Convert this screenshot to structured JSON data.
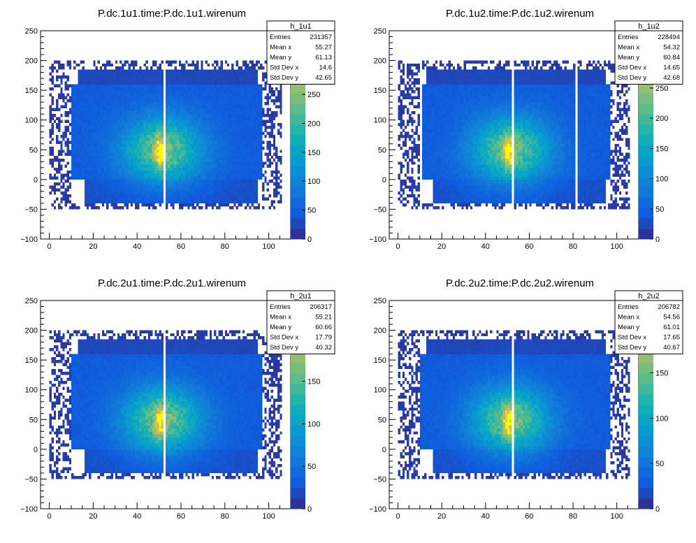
{
  "chart_data": [
    {
      "type": "heatmap",
      "title": "P.dc.1u1.time:P.dc.1u1.wirenum",
      "xlabel": "",
      "ylabel": "",
      "xlim": [
        -4,
        110
      ],
      "ylim": [
        -100,
        250
      ],
      "xticks": [
        0,
        20,
        40,
        60,
        80,
        100
      ],
      "yticks": [
        -100,
        -50,
        0,
        50,
        100,
        150,
        200,
        250
      ],
      "zlim": [
        0,
        360
      ],
      "zticks": [
        0,
        50,
        100,
        150,
        200,
        250,
        300,
        350
      ],
      "gaps_x": [
        52
      ],
      "stats": {
        "name": "h_1u1",
        "rows": [
          {
            "label": "Entries",
            "value": "231357"
          },
          {
            "label": "Mean x",
            "value": "55.27"
          },
          {
            "label": "Mean y",
            "value": "61.13"
          },
          {
            "label": "Std Dev x",
            "value": "14.6"
          },
          {
            "label": "Std Dev y",
            "value": "42.65"
          }
        ]
      }
    },
    {
      "type": "heatmap",
      "title": "P.dc.1u2.time:P.dc.1u2.wirenum",
      "xlabel": "",
      "ylabel": "",
      "xlim": [
        -4,
        110
      ],
      "ylim": [
        -100,
        250
      ],
      "xticks": [
        0,
        20,
        40,
        60,
        80,
        100
      ],
      "yticks": [
        -100,
        -50,
        0,
        50,
        100,
        150,
        200,
        250
      ],
      "zlim": [
        0,
        345
      ],
      "zticks": [
        0,
        50,
        100,
        150,
        200,
        250,
        300
      ],
      "gaps_x": [
        10,
        52,
        81
      ],
      "stats": {
        "name": "h_1u2",
        "rows": [
          {
            "label": "Entries",
            "value": "228494"
          },
          {
            "label": "Mean x",
            "value": "54.32"
          },
          {
            "label": "Mean y",
            "value": "60.84"
          },
          {
            "label": "Std Dev x",
            "value": "14.65"
          },
          {
            "label": "Std Dev y",
            "value": "42.68"
          }
        ]
      }
    },
    {
      "type": "heatmap",
      "title": "P.dc.2u1.time:P.dc.2u1.wirenum",
      "xlabel": "",
      "ylabel": "",
      "xlim": [
        -4,
        110
      ],
      "ylim": [
        -100,
        250
      ],
      "xticks": [
        0,
        20,
        40,
        60,
        80,
        100
      ],
      "yticks": [
        -100,
        -50,
        0,
        50,
        100,
        150,
        200,
        250
      ],
      "zlim": [
        0,
        245
      ],
      "zticks": [
        0,
        50,
        100,
        150,
        200
      ],
      "gaps_x": [
        52
      ],
      "stats": {
        "name": "h_2u1",
        "rows": [
          {
            "label": "Entries",
            "value": "206317"
          },
          {
            "label": "Mean x",
            "value": "55.21"
          },
          {
            "label": "Mean y",
            "value": "60.66"
          },
          {
            "label": "Std Dev x",
            "value": "17.79"
          },
          {
            "label": "Std Dev y",
            "value": "40.32"
          }
        ]
      }
    },
    {
      "type": "heatmap",
      "title": "P.dc.2u2.time:P.dc.2u2.wirenum",
      "xlabel": "",
      "ylabel": "",
      "xlim": [
        -4,
        110
      ],
      "ylim": [
        -100,
        250
      ],
      "xticks": [
        0,
        20,
        40,
        60,
        80,
        100
      ],
      "yticks": [
        -100,
        -50,
        0,
        50,
        100,
        150,
        200,
        250
      ],
      "zlim": [
        0,
        230
      ],
      "zticks": [
        0,
        50,
        100,
        150,
        200
      ],
      "gaps_x": [
        52
      ],
      "stats": {
        "name": "h_2u2",
        "rows": [
          {
            "label": "Entries",
            "value": "206782"
          },
          {
            "label": "Mean x",
            "value": "54.56"
          },
          {
            "label": "Mean y",
            "value": "61.01"
          },
          {
            "label": "Std Dev x",
            "value": "17.65"
          },
          {
            "label": "Std Dev y",
            "value": "40.67"
          }
        ]
      }
    }
  ]
}
